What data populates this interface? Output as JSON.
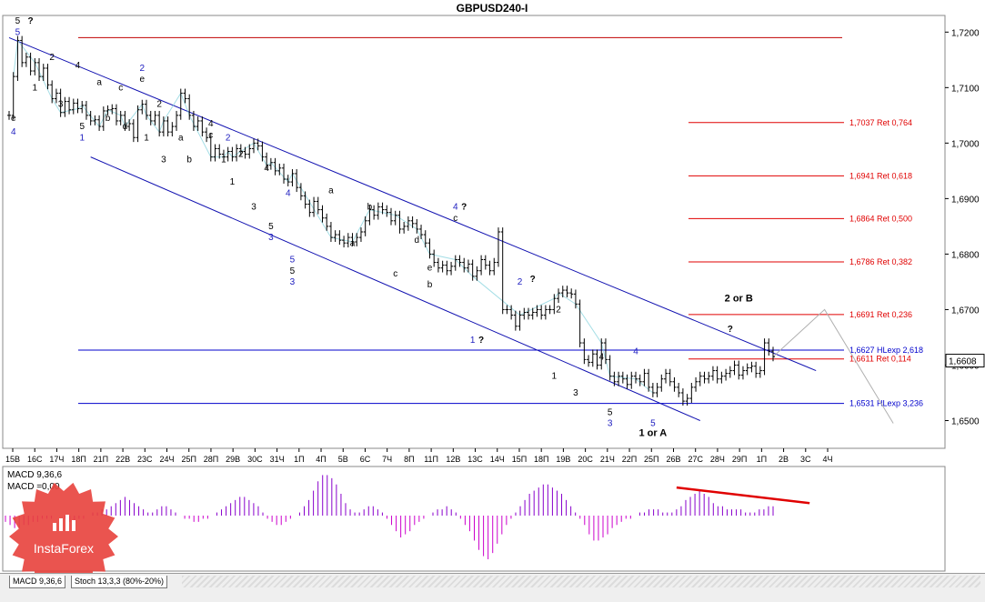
{
  "chart_data": {
    "type": "candlestick",
    "title": "GBPUSD240-I",
    "price_axis": {
      "range": [
        1.645,
        1.723
      ],
      "ticks": [
        "1,7200",
        "1,7100",
        "1,7000",
        "1,6900",
        "1,6800",
        "1,6700",
        "1,6600",
        "1,6500"
      ],
      "tick_values": [
        1.72,
        1.71,
        1.7,
        1.69,
        1.68,
        1.67,
        1.66,
        1.65
      ],
      "current_price": "1,6608",
      "current_value": 1.6608
    },
    "time_axis": {
      "labels": [
        "15В",
        "16С",
        "17Ч",
        "18П",
        "21П",
        "22В",
        "23С",
        "24Ч",
        "25П",
        "28П",
        "29В",
        "30С",
        "31Ч",
        "1П",
        "4П",
        "5В",
        "6С",
        "7Ч",
        "8П",
        "11П",
        "12В",
        "13С",
        "14Ч",
        "15П",
        "18П",
        "19В",
        "20С",
        "21Ч",
        "22П",
        "25П",
        "26В",
        "27С",
        "28Ч",
        "29П",
        "1П",
        "2В",
        "3С",
        "4Ч"
      ]
    },
    "price_series": [
      1.705,
      1.712,
      1.7185,
      1.7145,
      1.7155,
      1.713,
      1.7145,
      1.712,
      1.7135,
      1.7105,
      1.708,
      1.709,
      1.7055,
      1.7075,
      1.706,
      1.7072,
      1.7062,
      1.7068,
      1.705,
      1.704,
      1.7042,
      1.703,
      1.7058,
      1.706,
      1.7062,
      1.704,
      1.705,
      1.703,
      1.7035,
      1.701,
      1.706,
      1.707,
      1.705,
      1.704,
      1.705,
      1.702,
      1.704,
      1.702,
      1.703,
      1.705,
      1.709,
      1.708,
      1.705,
      1.703,
      1.704,
      1.702,
      1.701,
      1.6975,
      1.699,
      1.698,
      1.6975,
      1.6985,
      1.6975,
      1.699,
      1.6985,
      1.698,
      1.699,
      1.7,
      1.6995,
      1.6975,
      1.696,
      1.6965,
      1.695,
      1.6955,
      1.6935,
      1.693,
      1.6945,
      1.692,
      1.6905,
      1.689,
      1.6875,
      1.6895,
      1.688,
      1.6865,
      1.685,
      1.683,
      1.6835,
      1.6825,
      1.682,
      1.683,
      1.6822,
      1.683,
      1.684,
      1.686,
      1.688,
      1.687,
      1.6885,
      1.688,
      1.6875,
      1.686,
      1.687,
      1.6845,
      1.685,
      1.686,
      1.6855,
      1.6845,
      1.6835,
      1.682,
      1.68,
      1.6785,
      1.6775,
      1.678,
      1.677,
      1.6778,
      1.679,
      1.6785,
      1.6775,
      1.6782,
      1.676,
      1.677,
      1.679,
      1.678,
      1.677,
      1.6785,
      1.684,
      1.67,
      1.67,
      1.669,
      1.667,
      1.669,
      1.6695,
      1.669,
      1.6695,
      1.67,
      1.669,
      1.67,
      1.67,
      1.672,
      1.673,
      1.6735,
      1.673,
      1.6728,
      1.671,
      1.664,
      1.661,
      1.6605,
      1.662,
      1.66,
      1.664,
      1.661,
      1.658,
      1.657,
      1.658,
      1.6575,
      1.6565,
      1.658,
      1.6575,
      1.657,
      1.6585,
      1.656,
      1.655,
      1.656,
      1.6575,
      1.6585,
      1.657,
      1.656,
      1.655,
      1.6535,
      1.654,
      1.656,
      1.657,
      1.658,
      1.6575,
      1.658,
      1.659,
      1.6575,
      1.658,
      1.6585,
      1.659,
      1.66,
      1.6582,
      1.659,
      1.6595,
      1.6598,
      1.6585,
      1.659,
      1.664,
      1.6625,
      1.6615
    ],
    "horizontal_levels": [
      {
        "label": "",
        "value": 1.719,
        "color": "#c00000"
      },
      {
        "label": "1,7037 Ret 0,764",
        "value": 1.7037,
        "color": "#e00000"
      },
      {
        "label": "1,6941 Ret 0,618",
        "value": 1.6941,
        "color": "#e00000"
      },
      {
        "label": "1,6864 Ret 0,500",
        "value": 1.6864,
        "color": "#e00000"
      },
      {
        "label": "1,6786 Ret 0,382",
        "value": 1.6786,
        "color": "#e00000"
      },
      {
        "label": "1,6691 Ret 0,236",
        "value": 1.6691,
        "color": "#e00000"
      },
      {
        "label": "1,6627 HLexp 2,618",
        "value": 1.6627,
        "color": "#0000cc"
      },
      {
        "label": "1,6611 Ret 0,114",
        "value": 1.6611,
        "color": "#e00000"
      },
      {
        "label": "1,6531 HLexp 3,236",
        "value": 1.6531,
        "color": "#0000cc"
      }
    ],
    "channel_lines": [
      {
        "from": [
          0,
          1.719
        ],
        "to": [
          188,
          1.659
        ],
        "color": "#1010b0"
      },
      {
        "from": [
          19,
          1.6975
        ],
        "to": [
          161,
          1.65
        ],
        "color": "#1010b0"
      }
    ],
    "wave_labels": [
      {
        "text": "5",
        "i": 2,
        "v": 1.7215,
        "color": "#000000"
      },
      {
        "text": "?",
        "i": 5,
        "v": 1.7215,
        "color": "#000000"
      },
      {
        "text": "5",
        "i": 2,
        "v": 1.7195,
        "color": "#2020c0"
      },
      {
        "text": "e",
        "i": 1,
        "v": 1.704,
        "color": "#000000"
      },
      {
        "text": "4",
        "i": 1,
        "v": 1.7015,
        "color": "#2020c0"
      },
      {
        "text": "1",
        "i": 6,
        "v": 1.7095,
        "color": "#000000"
      },
      {
        "text": "2",
        "i": 10,
        "v": 1.715,
        "color": "#000000"
      },
      {
        "text": "3",
        "i": 12,
        "v": 1.7065,
        "color": "#000000"
      },
      {
        "text": "4",
        "i": 16,
        "v": 1.7135,
        "color": "#000000"
      },
      {
        "text": "5",
        "i": 17,
        "v": 1.7025,
        "color": "#000000"
      },
      {
        "text": "1",
        "i": 17,
        "v": 1.7005,
        "color": "#2020c0"
      },
      {
        "text": "a",
        "i": 21,
        "v": 1.7105,
        "color": "#000000"
      },
      {
        "text": "b",
        "i": 23,
        "v": 1.704,
        "color": "#000000"
      },
      {
        "text": "c",
        "i": 26,
        "v": 1.7095,
        "color": "#000000"
      },
      {
        "text": "d",
        "i": 27,
        "v": 1.7025,
        "color": "#000000"
      },
      {
        "text": "2",
        "i": 31,
        "v": 1.713,
        "color": "#2020c0"
      },
      {
        "text": "e",
        "i": 31,
        "v": 1.711,
        "color": "#000000"
      },
      {
        "text": "2",
        "i": 35,
        "v": 1.7065,
        "color": "#000000"
      },
      {
        "text": "1",
        "i": 32,
        "v": 1.7005,
        "color": "#000000"
      },
      {
        "text": "3",
        "i": 36,
        "v": 1.6965,
        "color": "#000000"
      },
      {
        "text": "a",
        "i": 40,
        "v": 1.7005,
        "color": "#000000"
      },
      {
        "text": "b",
        "i": 42,
        "v": 1.6965,
        "color": "#000000"
      },
      {
        "text": "4",
        "i": 47,
        "v": 1.703,
        "color": "#000000"
      },
      {
        "text": "c",
        "i": 47,
        "v": 1.701,
        "color": "#000000"
      },
      {
        "text": "2",
        "i": 51,
        "v": 1.7005,
        "color": "#2020c0"
      },
      {
        "text": "1",
        "i": 50,
        "v": 1.6965,
        "color": "#000000"
      },
      {
        "text": "2",
        "i": 54,
        "v": 1.6975,
        "color": "#000000"
      },
      {
        "text": "1",
        "i": 52,
        "v": 1.6925,
        "color": "#000000"
      },
      {
        "text": "4",
        "i": 60,
        "v": 1.695,
        "color": "#000000"
      },
      {
        "text": "3",
        "i": 57,
        "v": 1.688,
        "color": "#000000"
      },
      {
        "text": "4",
        "i": 65,
        "v": 1.6905,
        "color": "#2020c0"
      },
      {
        "text": "5",
        "i": 61,
        "v": 1.6845,
        "color": "#000000"
      },
      {
        "text": "3",
        "i": 61,
        "v": 1.6825,
        "color": "#2020c0"
      },
      {
        "text": "5",
        "i": 66,
        "v": 1.6785,
        "color": "#2020c0"
      },
      {
        "text": "5",
        "i": 66,
        "v": 1.6765,
        "color": "#000000"
      },
      {
        "text": "3",
        "i": 66,
        "v": 1.6745,
        "color": "#2020c0"
      },
      {
        "text": "a",
        "i": 75,
        "v": 1.691,
        "color": "#000000"
      },
      {
        "text": "a",
        "i": 80,
        "v": 1.6815,
        "color": "#000000"
      },
      {
        "text": "b",
        "i": 84,
        "v": 1.688,
        "color": "#000000"
      },
      {
        "text": "d",
        "i": 95,
        "v": 1.682,
        "color": "#000000"
      },
      {
        "text": "c",
        "i": 90,
        "v": 1.676,
        "color": "#000000"
      },
      {
        "text": "e",
        "i": 98,
        "v": 1.677,
        "color": "#000000"
      },
      {
        "text": "b",
        "i": 98,
        "v": 1.674,
        "color": "#000000"
      },
      {
        "text": "4",
        "i": 104,
        "v": 1.688,
        "color": "#2020c0"
      },
      {
        "text": "?",
        "i": 106,
        "v": 1.688,
        "color": "#000000"
      },
      {
        "text": "c",
        "i": 104,
        "v": 1.686,
        "color": "#000000"
      },
      {
        "text": "1",
        "i": 108,
        "v": 1.664,
        "color": "#2020c0"
      },
      {
        "text": "?",
        "i": 110,
        "v": 1.664,
        "color": "#000000"
      },
      {
        "text": "2",
        "i": 119,
        "v": 1.6745,
        "color": "#2020c0"
      },
      {
        "text": "?",
        "i": 122,
        "v": 1.675,
        "color": "#000000"
      },
      {
        "text": "2",
        "i": 128,
        "v": 1.6695,
        "color": "#000000"
      },
      {
        "text": "1",
        "i": 127,
        "v": 1.6575,
        "color": "#000000"
      },
      {
        "text": "4",
        "i": 138,
        "v": 1.661,
        "color": "#000000"
      },
      {
        "text": "4",
        "i": 146,
        "v": 1.662,
        "color": "#2020c0"
      },
      {
        "text": "3",
        "i": 132,
        "v": 1.6545,
        "color": "#000000"
      },
      {
        "text": "5",
        "i": 140,
        "v": 1.651,
        "color": "#000000"
      },
      {
        "text": "3",
        "i": 140,
        "v": 1.649,
        "color": "#2020c0"
      },
      {
        "text": "5",
        "i": 150,
        "v": 1.649,
        "color": "#2020c0"
      },
      {
        "text": "1 or A",
        "i": 150,
        "v": 1.6472,
        "color": "#000000"
      },
      {
        "text": "2 or B",
        "i": 170,
        "v": 1.6715,
        "color": "#000000"
      },
      {
        "text": "?",
        "i": 168,
        "v": 1.666,
        "color": "#000000"
      }
    ],
    "macd": {
      "label": "MACD 9,36,6",
      "value_label": "MACD =0,00",
      "values": [
        -2,
        -3,
        -4,
        -4,
        -3,
        -3,
        -2,
        -2,
        -1,
        -1,
        -1,
        0,
        0,
        -1,
        -2,
        -2,
        -1,
        -1,
        0,
        1,
        1,
        2,
        2,
        3,
        4,
        5,
        6,
        5,
        4,
        3,
        2,
        1,
        1,
        2,
        3,
        3,
        2,
        1,
        0,
        -1,
        -1,
        -2,
        -2,
        -1,
        -1,
        0,
        1,
        2,
        3,
        4,
        5,
        6,
        6,
        5,
        4,
        3,
        1,
        -1,
        -2,
        -3,
        -3,
        -2,
        -1,
        0,
        1,
        3,
        5,
        8,
        11,
        13,
        13,
        12,
        10,
        7,
        4,
        2,
        1,
        1,
        2,
        3,
        3,
        2,
        1,
        -1,
        -3,
        -5,
        -7,
        -6,
        -5,
        -3,
        -2,
        -1,
        0,
        1,
        2,
        2,
        3,
        2,
        1,
        -1,
        -3,
        -5,
        -8,
        -11,
        -13,
        -14,
        -12,
        -9,
        -6,
        -3,
        -1,
        1,
        3,
        5,
        7,
        8,
        9,
        10,
        10,
        9,
        8,
        7,
        5,
        3,
        1,
        -1,
        -3,
        -6,
        -8,
        -8,
        -7,
        -6,
        -4,
        -3,
        -2,
        -1,
        -1,
        0,
        1,
        1,
        2,
        2,
        2,
        1,
        1,
        1,
        2,
        3,
        5,
        6,
        7,
        8,
        7,
        6,
        4,
        3,
        3,
        2,
        2,
        2,
        2,
        1,
        1,
        1,
        2,
        2,
        3,
        3
      ],
      "trend_line": {
        "from_index": 146,
        "from_value": 7,
        "to_index": 170,
        "to_value": 2,
        "color": "#e00000"
      }
    },
    "macd_range": [
      -14,
      14
    ]
  },
  "bottom_tabs": [
    {
      "label": "MACD 9,36,6"
    },
    {
      "label": "Stoch 13,3,3 (80%-20%)"
    }
  ],
  "watermark": {
    "brand": "InstaForex"
  },
  "colors": {
    "candle": "#000000",
    "channel": "#1010b0",
    "fib": "#e00000",
    "expansion": "#0000cc",
    "macd_pos": "#8800cc",
    "macd_neg": "#cc00cc",
    "connector": "#7fd0dc",
    "badge": "#e8413c"
  }
}
